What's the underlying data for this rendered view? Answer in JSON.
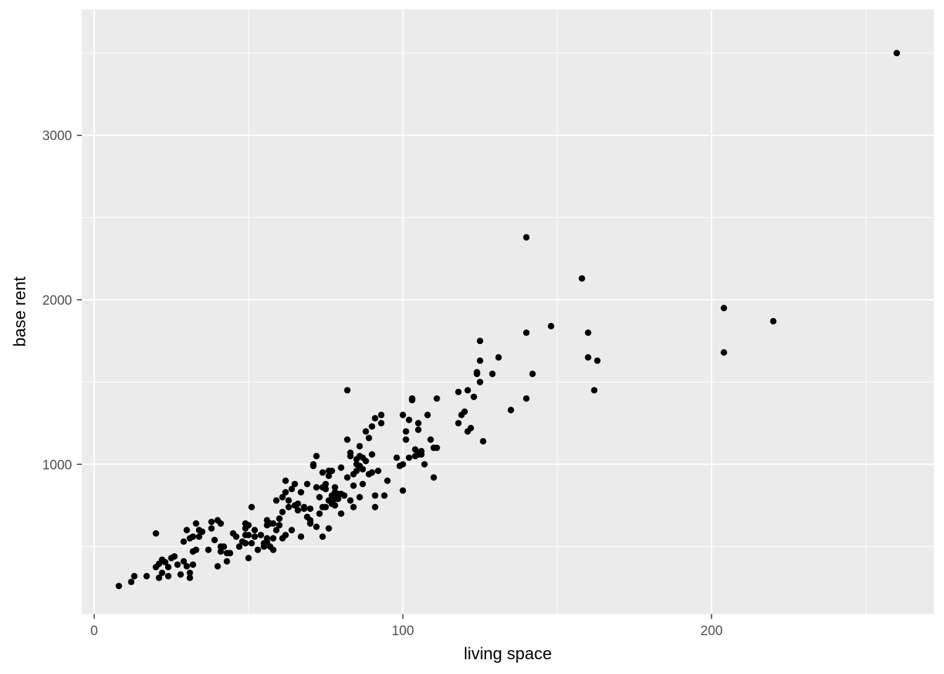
{
  "chart_data": {
    "type": "scatter",
    "xlabel": "living space",
    "ylabel": "base rent",
    "xlim": [
      -4,
      272
    ],
    "ylim": [
      90,
      3765
    ],
    "x_ticks": [
      0,
      100,
      200
    ],
    "x_tick_labels": [
      "0",
      "100",
      "200"
    ],
    "x_minor_ticks": [
      50,
      150,
      250
    ],
    "y_ticks": [
      1000,
      2000,
      3000
    ],
    "y_tick_labels": [
      "1000",
      "2000",
      "3000"
    ],
    "y_minor_ticks": [
      500,
      1500,
      2500,
      3500
    ],
    "grid": true,
    "legend": "none",
    "colors": {
      "panel": "#ebebeb",
      "grid": "#ffffff",
      "point": "#000000",
      "tick": "#4d4d4d"
    },
    "points": [
      [
        8,
        260
      ],
      [
        12,
        285
      ],
      [
        13,
        320
      ],
      [
        17,
        320
      ],
      [
        20,
        375
      ],
      [
        20,
        580
      ],
      [
        21,
        310
      ],
      [
        21,
        395
      ],
      [
        22,
        340
      ],
      [
        22,
        420
      ],
      [
        23,
        405
      ],
      [
        24,
        320
      ],
      [
        24,
        375
      ],
      [
        25,
        430
      ],
      [
        26,
        440
      ],
      [
        27,
        390
      ],
      [
        28,
        330
      ],
      [
        29,
        530
      ],
      [
        29,
        410
      ],
      [
        30,
        600
      ],
      [
        30,
        380
      ],
      [
        31,
        340
      ],
      [
        31,
        550
      ],
      [
        31,
        310
      ],
      [
        32,
        560
      ],
      [
        32,
        470
      ],
      [
        32,
        390
      ],
      [
        33,
        640
      ],
      [
        33,
        480
      ],
      [
        34,
        600
      ],
      [
        34,
        560
      ],
      [
        35,
        590
      ],
      [
        37,
        480
      ],
      [
        38,
        650
      ],
      [
        38,
        610
      ],
      [
        39,
        540
      ],
      [
        40,
        660
      ],
      [
        40,
        380
      ],
      [
        41,
        640
      ],
      [
        41,
        500
      ],
      [
        41,
        470
      ],
      [
        42,
        500
      ],
      [
        43,
        460
      ],
      [
        43,
        410
      ],
      [
        44,
        460
      ],
      [
        45,
        580
      ],
      [
        46,
        560
      ],
      [
        47,
        500
      ],
      [
        48,
        530
      ],
      [
        49,
        570
      ],
      [
        49,
        520
      ],
      [
        49,
        610
      ],
      [
        49,
        640
      ],
      [
        50,
        630
      ],
      [
        50,
        570
      ],
      [
        50,
        430
      ],
      [
        51,
        520
      ],
      [
        51,
        740
      ],
      [
        52,
        560
      ],
      [
        52,
        600
      ],
      [
        53,
        480
      ],
      [
        54,
        570
      ],
      [
        55,
        500
      ],
      [
        55,
        520
      ],
      [
        56,
        550
      ],
      [
        56,
        630
      ],
      [
        56,
        660
      ],
      [
        56,
        530
      ],
      [
        57,
        500
      ],
      [
        57,
        640
      ],
      [
        58,
        640
      ],
      [
        58,
        550
      ],
      [
        58,
        480
      ],
      [
        59,
        780
      ],
      [
        59,
        600
      ],
      [
        60,
        670
      ],
      [
        60,
        630
      ],
      [
        61,
        710
      ],
      [
        61,
        800
      ],
      [
        61,
        550
      ],
      [
        62,
        900
      ],
      [
        62,
        570
      ],
      [
        62,
        830
      ],
      [
        63,
        780
      ],
      [
        63,
        740
      ],
      [
        64,
        600
      ],
      [
        64,
        850
      ],
      [
        65,
        880
      ],
      [
        65,
        750
      ],
      [
        66,
        760
      ],
      [
        66,
        720
      ],
      [
        67,
        830
      ],
      [
        67,
        560
      ],
      [
        68,
        740
      ],
      [
        68,
        730
      ],
      [
        69,
        880
      ],
      [
        69,
        680
      ],
      [
        70,
        640
      ],
      [
        70,
        660
      ],
      [
        70,
        730
      ],
      [
        71,
        990
      ],
      [
        71,
        1000
      ],
      [
        72,
        860
      ],
      [
        72,
        1050
      ],
      [
        72,
        620
      ],
      [
        73,
        700
      ],
      [
        73,
        800
      ],
      [
        74,
        950
      ],
      [
        74,
        740
      ],
      [
        74,
        560
      ],
      [
        74,
        860
      ],
      [
        75,
        850
      ],
      [
        75,
        740
      ],
      [
        75,
        880
      ],
      [
        76,
        960
      ],
      [
        76,
        930
      ],
      [
        76,
        780
      ],
      [
        76,
        610
      ],
      [
        77,
        960
      ],
      [
        77,
        810
      ],
      [
        77,
        760
      ],
      [
        78,
        750
      ],
      [
        78,
        860
      ],
      [
        78,
        790
      ],
      [
        78,
        830
      ],
      [
        79,
        820
      ],
      [
        79,
        790
      ],
      [
        80,
        700
      ],
      [
        80,
        980
      ],
      [
        80,
        820
      ],
      [
        81,
        810
      ],
      [
        82,
        1150
      ],
      [
        82,
        1450
      ],
      [
        82,
        920
      ],
      [
        83,
        780
      ],
      [
        83,
        1070
      ],
      [
        83,
        1050
      ],
      [
        84,
        940
      ],
      [
        84,
        740
      ],
      [
        84,
        870
      ],
      [
        85,
        1000
      ],
      [
        85,
        960
      ],
      [
        85,
        1030
      ],
      [
        86,
        1050
      ],
      [
        86,
        1110
      ],
      [
        86,
        990
      ],
      [
        86,
        800
      ],
      [
        87,
        880
      ],
      [
        87,
        1040
      ],
      [
        87,
        970
      ],
      [
        88,
        1200
      ],
      [
        88,
        1020
      ],
      [
        89,
        940
      ],
      [
        89,
        1160
      ],
      [
        90,
        1060
      ],
      [
        90,
        950
      ],
      [
        90,
        1230
      ],
      [
        91,
        1280
      ],
      [
        91,
        810
      ],
      [
        91,
        740
      ],
      [
        92,
        960
      ],
      [
        93,
        1300
      ],
      [
        93,
        1250
      ],
      [
        94,
        810
      ],
      [
        95,
        900
      ],
      [
        98,
        1040
      ],
      [
        99,
        990
      ],
      [
        100,
        1300
      ],
      [
        100,
        1000
      ],
      [
        100,
        840
      ],
      [
        101,
        1200
      ],
      [
        101,
        1150
      ],
      [
        102,
        1040
      ],
      [
        102,
        1270
      ],
      [
        103,
        1390
      ],
      [
        103,
        1400
      ],
      [
        104,
        1050
      ],
      [
        104,
        1090
      ],
      [
        105,
        1250
      ],
      [
        105,
        1210
      ],
      [
        105,
        1060
      ],
      [
        106,
        1080
      ],
      [
        106,
        1060
      ],
      [
        107,
        1000
      ],
      [
        108,
        1300
      ],
      [
        109,
        1150
      ],
      [
        110,
        1100
      ],
      [
        110,
        920
      ],
      [
        111,
        1100
      ],
      [
        111,
        1400
      ],
      [
        118,
        1440
      ],
      [
        118,
        1250
      ],
      [
        119,
        1300
      ],
      [
        120,
        1320
      ],
      [
        121,
        1200
      ],
      [
        121,
        1450
      ],
      [
        122,
        1220
      ],
      [
        123,
        1410
      ],
      [
        124,
        1550
      ],
      [
        124,
        1560
      ],
      [
        125,
        1500
      ],
      [
        125,
        1630
      ],
      [
        125,
        1750
      ],
      [
        126,
        1140
      ],
      [
        129,
        1550
      ],
      [
        131,
        1650
      ],
      [
        135,
        1330
      ],
      [
        140,
        2380
      ],
      [
        140,
        1800
      ],
      [
        140,
        1400
      ],
      [
        142,
        1550
      ],
      [
        148,
        1840
      ],
      [
        158,
        2130
      ],
      [
        160,
        1800
      ],
      [
        160,
        1650
      ],
      [
        162,
        1450
      ],
      [
        163,
        1630
      ],
      [
        204,
        1950
      ],
      [
        204,
        1680
      ],
      [
        220,
        1870
      ],
      [
        260,
        3500
      ]
    ]
  }
}
